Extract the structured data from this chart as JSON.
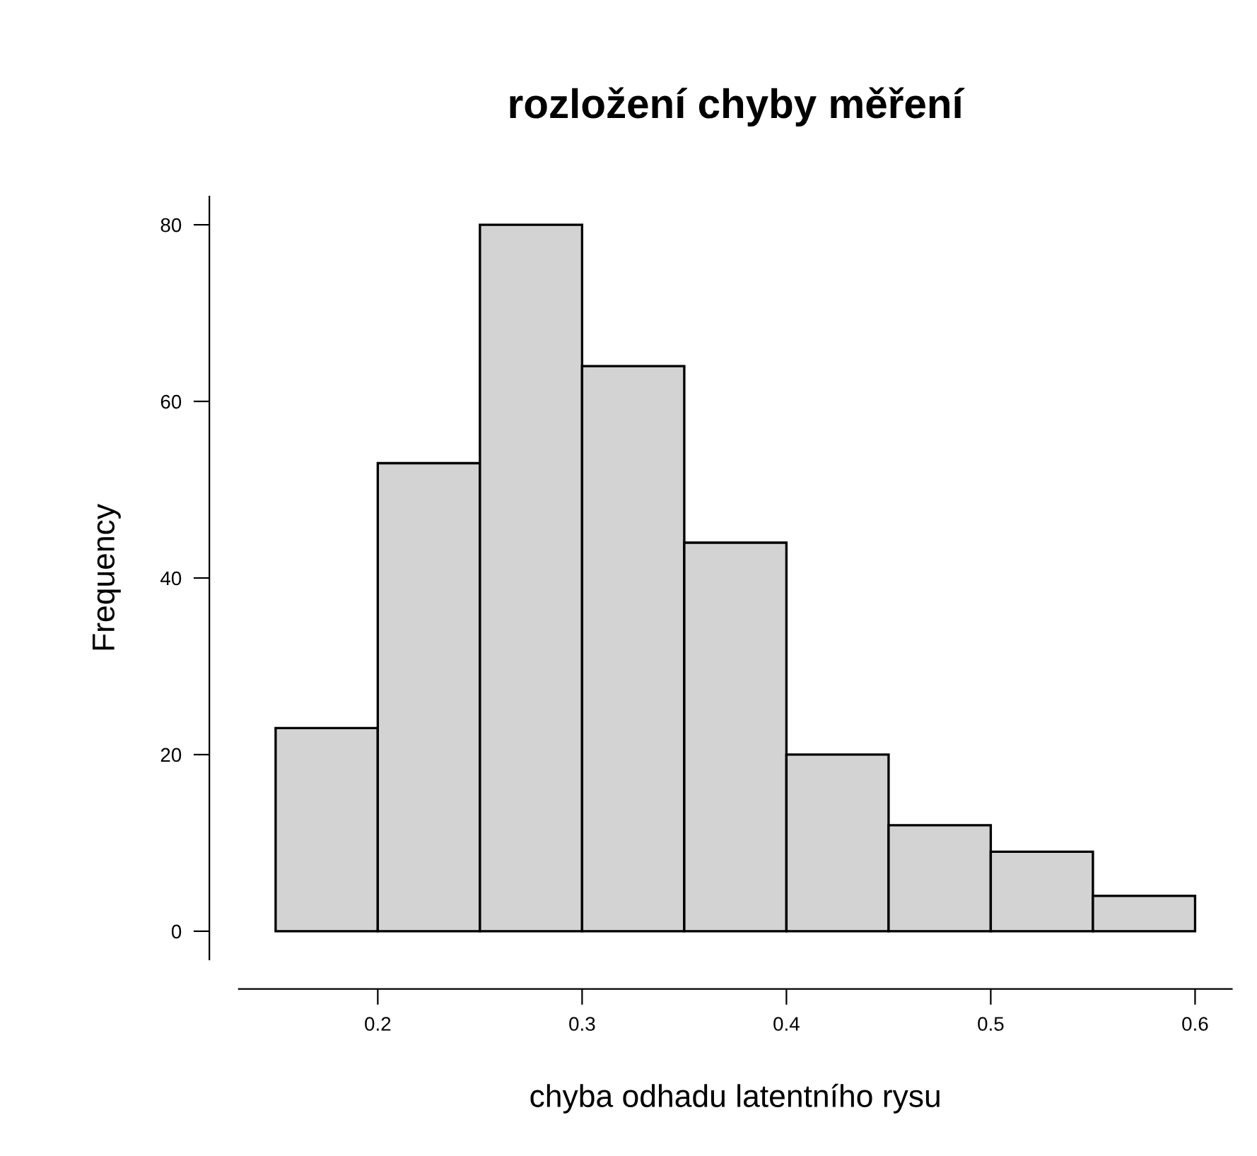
{
  "chart_data": {
    "type": "histogram",
    "title": "rozložení chyby měření",
    "xlabel": "chyba odhadu latentního rysu",
    "ylabel": "Frequency",
    "bins": [
      0.15,
      0.2,
      0.25,
      0.3,
      0.35,
      0.4,
      0.45,
      0.5,
      0.55,
      0.6
    ],
    "values": [
      23,
      53,
      80,
      64,
      44,
      20,
      12,
      9,
      4
    ],
    "color": "#d3d3d3",
    "xlim": [
      0.132,
      0.618
    ],
    "ylim": [
      -3.2,
      83.2
    ],
    "xticks": [
      0.2,
      0.3,
      0.4,
      0.5,
      0.6
    ],
    "yticks": [
      0,
      20,
      40,
      60,
      80
    ],
    "grid": false
  }
}
